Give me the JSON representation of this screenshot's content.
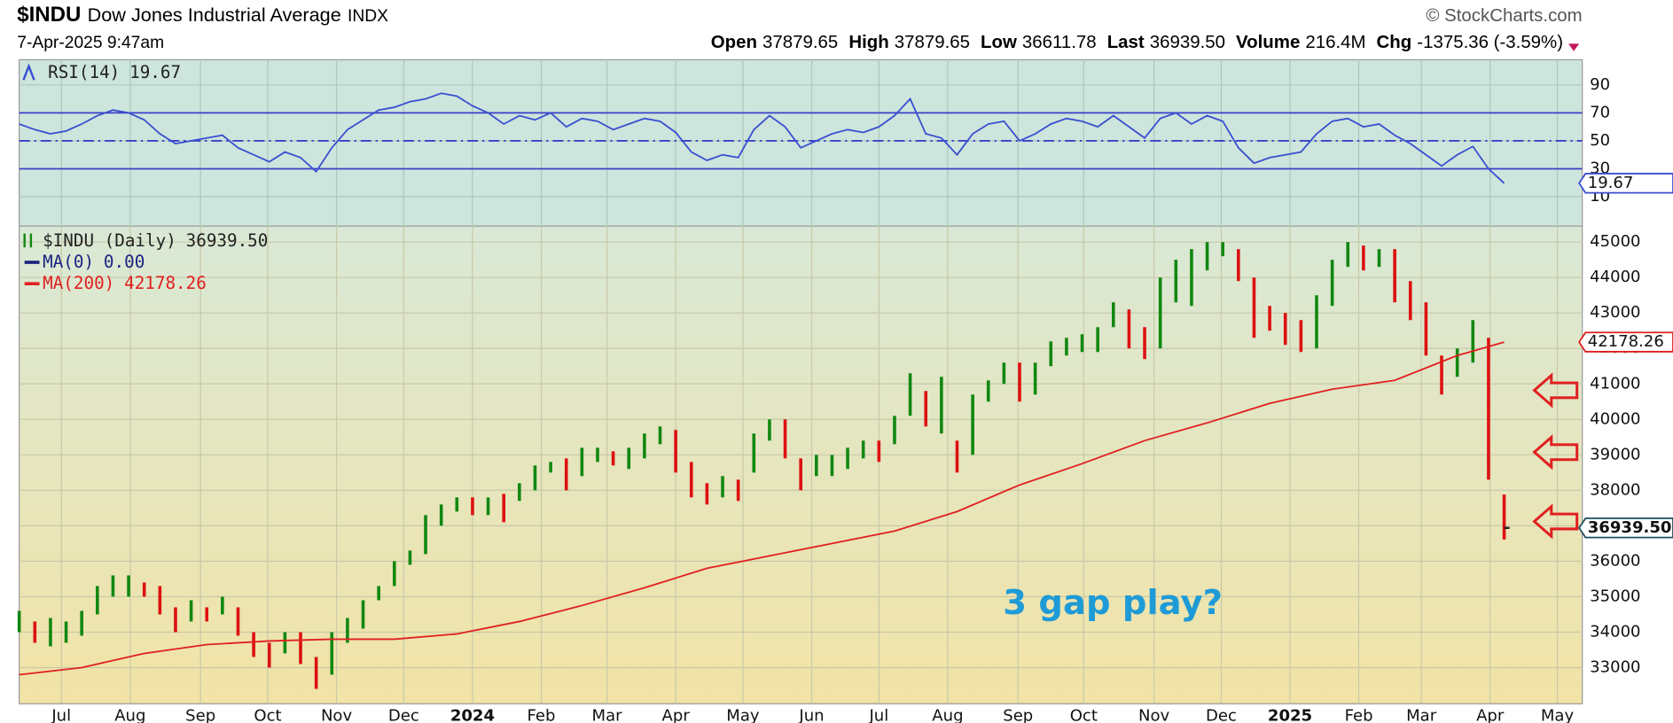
{
  "header": {
    "symbol": "$INDU",
    "name": "Dow Jones Industrial Average",
    "exchange": "INDX",
    "source": "© StockCharts.com",
    "date": "7-Apr-2025 9:47am",
    "quote": [
      {
        "label": "Open",
        "value": "37879.65"
      },
      {
        "label": "High",
        "value": "37879.65"
      },
      {
        "label": "Low",
        "value": "36611.78"
      },
      {
        "label": "Last",
        "value": "36939.50"
      },
      {
        "label": "Volume",
        "value": "216.4M"
      },
      {
        "label": "Chg",
        "value": "-1375.36 (-3.59%)"
      }
    ]
  },
  "chart_data": [
    {
      "type": "line",
      "ylim": [
        -11,
        108
      ],
      "yticks": [
        10,
        30,
        50,
        70,
        90
      ],
      "bands": [
        30,
        70
      ],
      "midline": 50,
      "grid": true,
      "series": [
        {
          "name": "RSI(14)",
          "color": "#3a4fd0",
          "values": [
            62,
            58,
            55,
            57,
            62,
            68,
            72,
            70,
            65,
            55,
            48,
            50,
            52,
            54,
            45,
            40,
            35,
            42,
            38,
            28,
            45,
            58,
            65,
            72,
            74,
            78,
            80,
            84,
            82,
            75,
            70,
            62,
            68,
            65,
            70,
            60,
            66,
            64,
            58,
            62,
            66,
            64,
            56,
            42,
            36,
            40,
            38,
            58,
            68,
            60,
            45,
            50,
            55,
            58,
            56,
            60,
            68,
            80,
            55,
            52,
            40,
            55,
            62,
            64,
            50,
            55,
            62,
            66,
            64,
            60,
            68,
            60,
            52,
            66,
            70,
            62,
            68,
            64,
            45,
            34,
            38,
            40,
            42,
            55,
            64,
            66,
            60,
            62,
            54,
            48,
            40,
            32,
            40,
            46,
            30,
            19.67
          ]
        }
      ]
    },
    {
      "type": "hlbar",
      "annotation": "3 gap play?",
      "xlim": [
        0,
        100
      ],
      "ylim": [
        31980,
        45450
      ],
      "yticks": [
        33000,
        34000,
        35000,
        36000,
        37000,
        38000,
        39000,
        40000,
        41000,
        42000,
        43000,
        44000,
        45000
      ],
      "grid": true,
      "xticks": [
        {
          "value": 2.7,
          "label": "Jul"
        },
        {
          "value": 7.1,
          "label": "Aug"
        },
        {
          "value": 11.6,
          "label": "Sep"
        },
        {
          "value": 15.9,
          "label": "Oct"
        },
        {
          "value": 20.3,
          "label": "Nov"
        },
        {
          "value": 24.6,
          "label": "Dec"
        },
        {
          "value": 29.0,
          "label": "2024"
        },
        {
          "value": 33.4,
          "label": "Feb"
        },
        {
          "value": 37.6,
          "label": "Mar"
        },
        {
          "value": 42.0,
          "label": "Apr"
        },
        {
          "value": 46.3,
          "label": "May"
        },
        {
          "value": 50.7,
          "label": "Jun"
        },
        {
          "value": 55.0,
          "label": "Jul"
        },
        {
          "value": 59.4,
          "label": "Aug"
        },
        {
          "value": 63.9,
          "label": "Sep"
        },
        {
          "value": 68.1,
          "label": "Oct"
        },
        {
          "value": 72.6,
          "label": "Nov"
        },
        {
          "value": 76.9,
          "label": "Dec"
        },
        {
          "value": 81.3,
          "label": "2025"
        },
        {
          "value": 85.7,
          "label": "Feb"
        },
        {
          "value": 89.7,
          "label": "Mar"
        },
        {
          "value": 94.1,
          "label": "Apr"
        },
        {
          "value": 98.4,
          "label": "May"
        }
      ],
      "series": [
        {
          "name": "$INDU (Daily)",
          "up_color": "#118811",
          "down_color": "#dd1111",
          "last": 36939.5,
          "last_label": "36939.50",
          "high": [
            34600,
            34300,
            34400,
            34300,
            34600,
            35300,
            35600,
            35600,
            35400,
            35300,
            34700,
            34900,
            34700,
            35000,
            34700,
            34000,
            33700,
            34000,
            34000,
            33300,
            34000,
            34400,
            34900,
            35300,
            36000,
            36300,
            37300,
            37600,
            37800,
            37800,
            37800,
            37900,
            38200,
            38700,
            38800,
            38900,
            39200,
            39200,
            39100,
            39200,
            39600,
            39800,
            39700,
            38800,
            38200,
            38400,
            38300,
            39600,
            40000,
            40000,
            38900,
            39000,
            39000,
            39200,
            39400,
            39400,
            40100,
            41300,
            40800,
            41200,
            39400,
            40700,
            41100,
            41600,
            41600,
            41600,
            42200,
            42300,
            42400,
            42600,
            43300,
            43100,
            42600,
            44000,
            44500,
            44800,
            45000,
            45000,
            44800,
            44000,
            43200,
            43000,
            42800,
            43500,
            44500,
            45000,
            44900,
            44800,
            44800,
            43900,
            43300,
            41800,
            42000,
            42800,
            42300,
            37879.65
          ],
          "low": [
            34000,
            33700,
            33600,
            33700,
            33900,
            34500,
            35000,
            35000,
            35000,
            34500,
            34000,
            34300,
            34300,
            34500,
            33900,
            33300,
            33000,
            33400,
            33100,
            32400,
            32800,
            33700,
            34100,
            34900,
            35300,
            35900,
            36200,
            37000,
            37400,
            37300,
            37300,
            37100,
            37700,
            38000,
            38500,
            38000,
            38400,
            38800,
            38700,
            38600,
            38900,
            39300,
            38500,
            37800,
            37600,
            37800,
            37700,
            38500,
            39400,
            38900,
            38000,
            38400,
            38400,
            38600,
            38900,
            38800,
            39300,
            40100,
            39800,
            39600,
            38500,
            39000,
            40500,
            41000,
            40500,
            40700,
            41500,
            41800,
            41900,
            41900,
            42600,
            42000,
            41700,
            42000,
            43300,
            43200,
            44200,
            44600,
            43900,
            42300,
            42500,
            42100,
            41900,
            42000,
            43200,
            44300,
            44200,
            44300,
            43300,
            42800,
            41800,
            40700,
            41200,
            41600,
            38300,
            36611.78
          ]
        },
        {
          "name": "MA(0)",
          "color": "#1a237e",
          "last_label": "0.00"
        },
        {
          "name": "MA(200)",
          "color": "#e02020",
          "x": [
            0,
            4,
            8,
            12,
            16,
            20,
            24,
            28,
            32,
            36,
            40,
            44,
            48,
            52,
            56,
            60,
            64,
            68,
            72,
            76,
            80,
            84,
            88,
            92,
            95
          ],
          "values": [
            32800,
            33000,
            33400,
            33650,
            33750,
            33800,
            33800,
            33950,
            34300,
            34750,
            35250,
            35800,
            36150,
            36500,
            36850,
            37400,
            38150,
            38750,
            39400,
            39900,
            40450,
            40850,
            41100,
            41800,
            42178.26
          ]
        }
      ]
    }
  ]
}
